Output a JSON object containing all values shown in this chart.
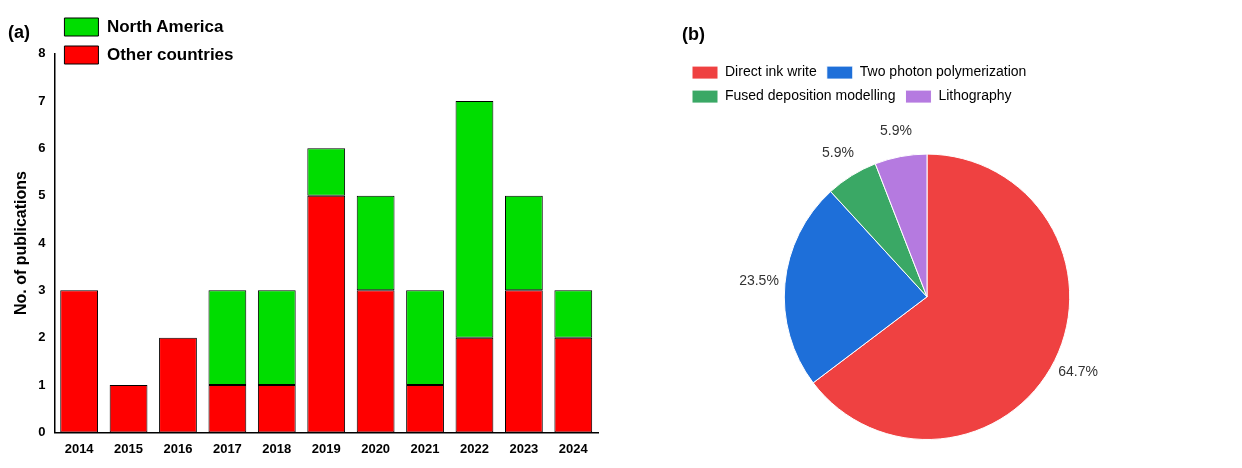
{
  "chart_data": [
    {
      "type": "bar",
      "title": "(a)",
      "ylabel": "No. of publications",
      "categories": [
        "2014",
        "2015",
        "2016",
        "2017",
        "2018",
        "2019",
        "2020",
        "2021",
        "2022",
        "2023",
        "2024"
      ],
      "stacked": true,
      "legend": "top left",
      "ylim": [
        0,
        8
      ],
      "yticks": [
        0,
        1,
        2,
        3,
        4,
        5,
        6,
        7,
        8
      ],
      "grid": false,
      "series": [
        {
          "name": "Other countries",
          "color": "#ff0000",
          "values": [
            3,
            1,
            2,
            1,
            1,
            5,
            3,
            1,
            2,
            3,
            2
          ]
        },
        {
          "name": "North America",
          "color": "#00dd00",
          "values": [
            0,
            0,
            0,
            2,
            2,
            1,
            2,
            2,
            5,
            2,
            1
          ]
        }
      ]
    },
    {
      "type": "pie",
      "title": "(b)",
      "categories": [
        "Direct ink write",
        "Two photon polymerization",
        "Fused deposition modelling",
        "Lithography"
      ],
      "values": [
        64.7,
        23.5,
        5.9,
        5.9
      ],
      "colors": [
        "#ef4141",
        "#1e6fd9",
        "#3aa865",
        "#b57ae0"
      ],
      "value_labels": [
        "64.7%",
        "23.5%",
        "5.9%",
        "5.9%"
      ],
      "legend": "top left"
    }
  ]
}
